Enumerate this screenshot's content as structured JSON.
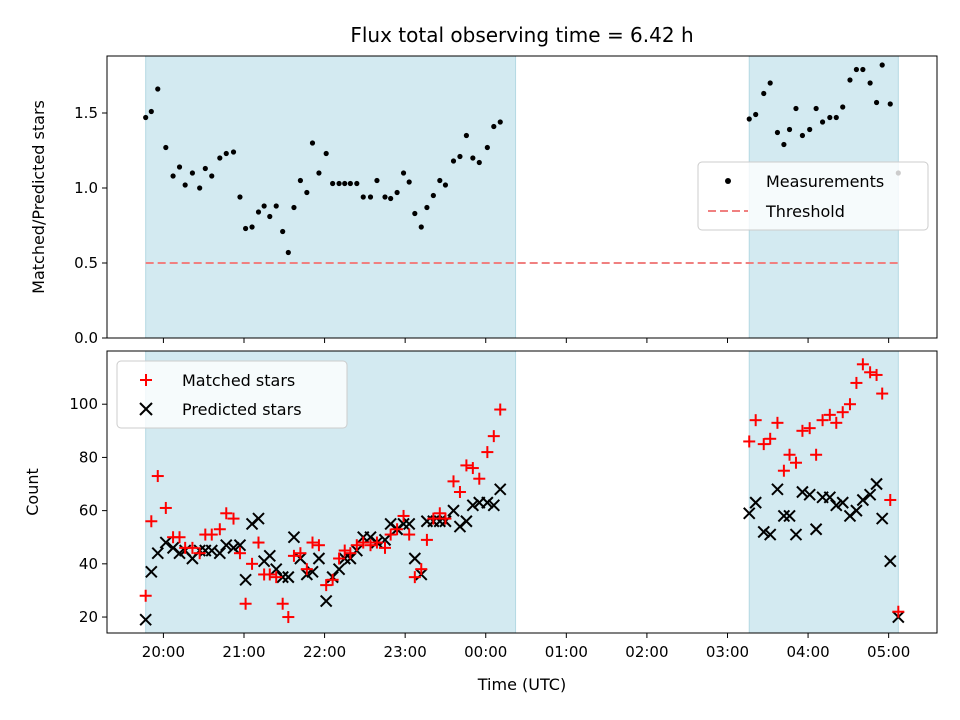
{
  "chart_data": {
    "title": "Flux total observing time = 6.42 h",
    "xlabel": "Time (UTC)",
    "xtick_labels": [
      "20:00",
      "21:00",
      "22:00",
      "23:00",
      "00:00",
      "01:00",
      "02:00",
      "03:00",
      "04:00",
      "05:00"
    ],
    "xlim_hours": [
      -0.7,
      9.6
    ],
    "shaded_spans": [
      [
        -0.22,
        4.37
      ],
      [
        7.27,
        9.12
      ]
    ],
    "colors": {
      "shade": "#d3eaf1",
      "threshold": "#f08080",
      "measurements": "#000000",
      "matched": "#ff0000",
      "predicted": "#000000"
    },
    "top": {
      "type": "scatter",
      "ylabel": "Matched/Predicted stars",
      "ylim": [
        0,
        1.88
      ],
      "yticks": [
        "0.0",
        "0.5",
        "1.0",
        "1.5"
      ],
      "threshold": 0.5,
      "legend": {
        "placement": "center-right",
        "measurements": "Measurements",
        "threshold": "Threshold"
      },
      "points": [
        [
          -0.22,
          1.47
        ],
        [
          -0.15,
          1.51
        ],
        [
          -0.07,
          1.66
        ],
        [
          0.03,
          1.27
        ],
        [
          0.12,
          1.08
        ],
        [
          0.2,
          1.14
        ],
        [
          0.27,
          1.02
        ],
        [
          0.36,
          1.1
        ],
        [
          0.45,
          1.0
        ],
        [
          0.52,
          1.13
        ],
        [
          0.6,
          1.08
        ],
        [
          0.7,
          1.2
        ],
        [
          0.78,
          1.23
        ],
        [
          0.87,
          1.24
        ],
        [
          0.95,
          0.94
        ],
        [
          1.02,
          0.73
        ],
        [
          1.1,
          0.74
        ],
        [
          1.18,
          0.84
        ],
        [
          1.25,
          0.88
        ],
        [
          1.32,
          0.81
        ],
        [
          1.4,
          0.88
        ],
        [
          1.48,
          0.71
        ],
        [
          1.55,
          0.57
        ],
        [
          1.62,
          0.87
        ],
        [
          1.7,
          1.05
        ],
        [
          1.78,
          0.97
        ],
        [
          1.85,
          1.3
        ],
        [
          1.93,
          1.1
        ],
        [
          2.02,
          1.23
        ],
        [
          2.1,
          1.03
        ],
        [
          2.18,
          1.03
        ],
        [
          2.25,
          1.03
        ],
        [
          2.32,
          1.03
        ],
        [
          2.4,
          1.03
        ],
        [
          2.48,
          0.94
        ],
        [
          2.57,
          0.94
        ],
        [
          2.65,
          1.05
        ],
        [
          2.75,
          0.94
        ],
        [
          2.82,
          0.93
        ],
        [
          2.9,
          0.97
        ],
        [
          2.98,
          1.1
        ],
        [
          3.05,
          1.04
        ],
        [
          3.12,
          0.83
        ],
        [
          3.2,
          0.74
        ],
        [
          3.27,
          0.87
        ],
        [
          3.35,
          0.95
        ],
        [
          3.43,
          1.05
        ],
        [
          3.5,
          1.02
        ],
        [
          3.6,
          1.18
        ],
        [
          3.68,
          1.21
        ],
        [
          3.76,
          1.35
        ],
        [
          3.84,
          1.2
        ],
        [
          3.92,
          1.17
        ],
        [
          4.02,
          1.27
        ],
        [
          4.1,
          1.41
        ],
        [
          4.18,
          1.44
        ],
        [
          7.27,
          1.46
        ],
        [
          7.35,
          1.49
        ],
        [
          7.45,
          1.63
        ],
        [
          7.53,
          1.7
        ],
        [
          7.62,
          1.37
        ],
        [
          7.7,
          1.29
        ],
        [
          7.77,
          1.39
        ],
        [
          7.85,
          1.53
        ],
        [
          7.93,
          1.35
        ],
        [
          8.02,
          1.39
        ],
        [
          8.1,
          1.53
        ],
        [
          8.18,
          1.44
        ],
        [
          8.27,
          1.47
        ],
        [
          8.35,
          1.47
        ],
        [
          8.43,
          1.54
        ],
        [
          8.52,
          1.72
        ],
        [
          8.6,
          1.79
        ],
        [
          8.68,
          1.79
        ],
        [
          8.77,
          1.7
        ],
        [
          8.85,
          1.57
        ],
        [
          8.92,
          1.82
        ],
        [
          9.02,
          1.56
        ],
        [
          9.12,
          1.1
        ]
      ]
    },
    "bottom": {
      "type": "scatter",
      "ylabel": "Count",
      "ylim": [
        14,
        120
      ],
      "yticks": [
        "20",
        "40",
        "60",
        "80",
        "100"
      ],
      "legend": {
        "placement": "top-left",
        "matched": "Matched stars",
        "predicted": "Predicted stars"
      },
      "matched": [
        [
          -0.22,
          28
        ],
        [
          -0.15,
          56
        ],
        [
          -0.07,
          73
        ],
        [
          0.03,
          61
        ],
        [
          0.12,
          50
        ],
        [
          0.2,
          50
        ],
        [
          0.27,
          46
        ],
        [
          0.36,
          46
        ],
        [
          0.45,
          44
        ],
        [
          0.52,
          51
        ],
        [
          0.6,
          51
        ],
        [
          0.7,
          53
        ],
        [
          0.78,
          59
        ],
        [
          0.87,
          57
        ],
        [
          0.95,
          44
        ],
        [
          1.02,
          25
        ],
        [
          1.1,
          40
        ],
        [
          1.18,
          48
        ],
        [
          1.25,
          36
        ],
        [
          1.32,
          36
        ],
        [
          1.4,
          35
        ],
        [
          1.48,
          25
        ],
        [
          1.55,
          20
        ],
        [
          1.62,
          43
        ],
        [
          1.7,
          44
        ],
        [
          1.78,
          38
        ],
        [
          1.85,
          48
        ],
        [
          1.93,
          47
        ],
        [
          2.02,
          32
        ],
        [
          2.1,
          34
        ],
        [
          2.18,
          42
        ],
        [
          2.25,
          45
        ],
        [
          2.32,
          44
        ],
        [
          2.4,
          47
        ],
        [
          2.48,
          48
        ],
        [
          2.57,
          47
        ],
        [
          2.65,
          48
        ],
        [
          2.75,
          46
        ],
        [
          2.82,
          51
        ],
        [
          2.9,
          53
        ],
        [
          2.98,
          58
        ],
        [
          3.05,
          51
        ],
        [
          3.12,
          35
        ],
        [
          3.2,
          38
        ],
        [
          3.27,
          49
        ],
        [
          3.35,
          57
        ],
        [
          3.43,
          59
        ],
        [
          3.5,
          57
        ],
        [
          3.6,
          71
        ],
        [
          3.68,
          67
        ],
        [
          3.76,
          77
        ],
        [
          3.84,
          76
        ],
        [
          3.92,
          72
        ],
        [
          4.02,
          82
        ],
        [
          4.1,
          88
        ],
        [
          4.18,
          98
        ],
        [
          7.27,
          86
        ],
        [
          7.35,
          94
        ],
        [
          7.45,
          85
        ],
        [
          7.53,
          87
        ],
        [
          7.62,
          93
        ],
        [
          7.7,
          75
        ],
        [
          7.77,
          81
        ],
        [
          7.85,
          78
        ],
        [
          7.93,
          90
        ],
        [
          8.02,
          91
        ],
        [
          8.1,
          81
        ],
        [
          8.18,
          94
        ],
        [
          8.27,
          96
        ],
        [
          8.35,
          93
        ],
        [
          8.43,
          97
        ],
        [
          8.52,
          100
        ],
        [
          8.6,
          108
        ],
        [
          8.68,
          115
        ],
        [
          8.77,
          112
        ],
        [
          8.85,
          111
        ],
        [
          8.92,
          104
        ],
        [
          9.02,
          64
        ],
        [
          9.12,
          22
        ]
      ],
      "predicted": [
        [
          -0.22,
          19
        ],
        [
          -0.15,
          37
        ],
        [
          -0.07,
          44
        ],
        [
          0.03,
          48
        ],
        [
          0.12,
          46
        ],
        [
          0.2,
          44
        ],
        [
          0.27,
          45
        ],
        [
          0.36,
          42
        ],
        [
          0.45,
          45
        ],
        [
          0.52,
          45
        ],
        [
          0.6,
          45
        ],
        [
          0.7,
          44
        ],
        [
          0.78,
          47
        ],
        [
          0.87,
          46
        ],
        [
          0.95,
          47
        ],
        [
          1.02,
          34
        ],
        [
          1.1,
          55
        ],
        [
          1.18,
          57
        ],
        [
          1.25,
          41
        ],
        [
          1.32,
          43
        ],
        [
          1.4,
          38
        ],
        [
          1.48,
          35
        ],
        [
          1.55,
          35
        ],
        [
          1.62,
          50
        ],
        [
          1.7,
          42
        ],
        [
          1.78,
          36
        ],
        [
          1.85,
          37
        ],
        [
          1.93,
          42
        ],
        [
          2.02,
          26
        ],
        [
          2.1,
          35
        ],
        [
          2.18,
          38
        ],
        [
          2.25,
          42
        ],
        [
          2.32,
          42
        ],
        [
          2.4,
          45
        ],
        [
          2.48,
          50
        ],
        [
          2.57,
          50
        ],
        [
          2.65,
          48
        ],
        [
          2.75,
          49
        ],
        [
          2.82,
          55
        ],
        [
          2.9,
          53
        ],
        [
          2.98,
          55
        ],
        [
          3.05,
          55
        ],
        [
          3.12,
          42
        ],
        [
          3.2,
          36
        ],
        [
          3.27,
          56
        ],
        [
          3.35,
          56
        ],
        [
          3.43,
          56
        ],
        [
          3.5,
          56
        ],
        [
          3.6,
          60
        ],
        [
          3.68,
          54
        ],
        [
          3.76,
          56
        ],
        [
          3.84,
          62
        ],
        [
          3.92,
          63
        ],
        [
          4.02,
          63
        ],
        [
          4.1,
          62
        ],
        [
          4.18,
          68
        ],
        [
          7.27,
          59
        ],
        [
          7.35,
          63
        ],
        [
          7.45,
          52
        ],
        [
          7.53,
          51
        ],
        [
          7.62,
          68
        ],
        [
          7.7,
          58
        ],
        [
          7.77,
          58
        ],
        [
          7.85,
          51
        ],
        [
          7.93,
          67
        ],
        [
          8.02,
          66
        ],
        [
          8.1,
          53
        ],
        [
          8.18,
          65
        ],
        [
          8.27,
          65
        ],
        [
          8.35,
          62
        ],
        [
          8.43,
          63
        ],
        [
          8.52,
          58
        ],
        [
          8.6,
          60
        ],
        [
          8.68,
          64
        ],
        [
          8.77,
          66
        ],
        [
          8.85,
          70
        ],
        [
          8.92,
          57
        ],
        [
          9.02,
          41
        ],
        [
          9.12,
          20
        ]
      ]
    }
  }
}
